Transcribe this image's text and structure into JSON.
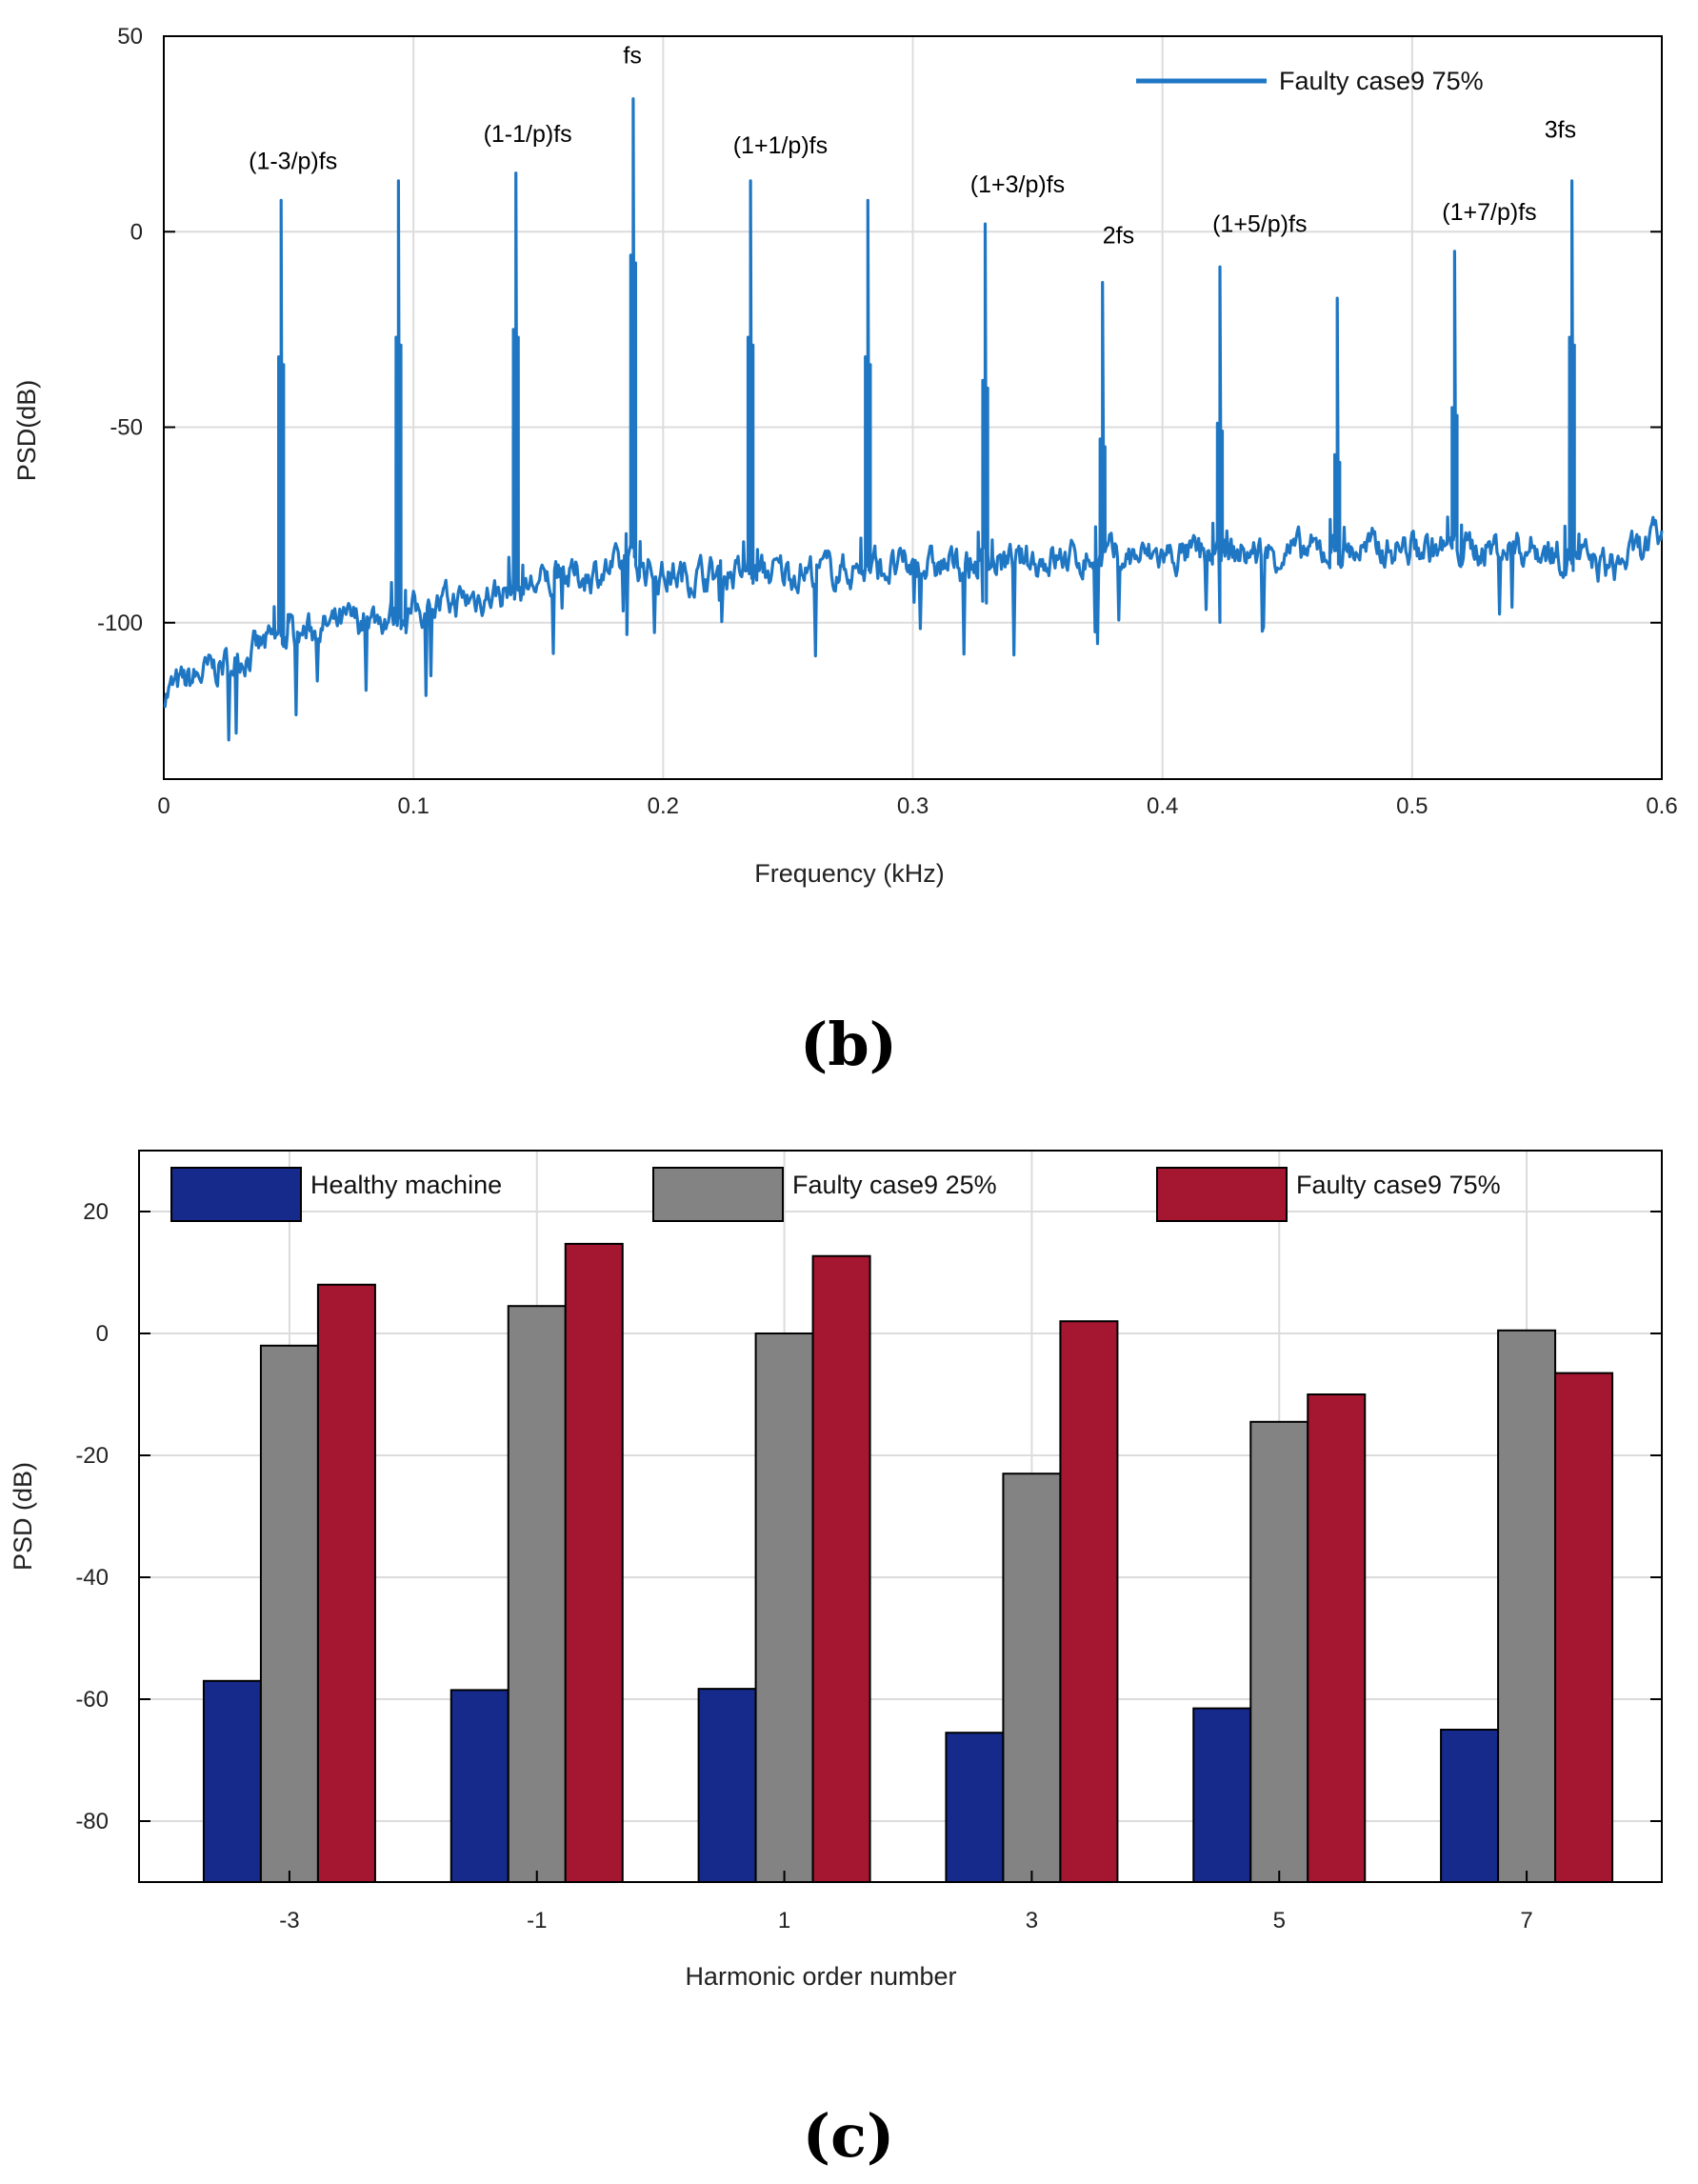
{
  "chart_data": [
    {
      "type": "line",
      "panel_label": "(b)",
      "xlabel": "Frequency (kHz)",
      "ylabel": "PSD(dB)",
      "xlim": [
        0,
        0.6
      ],
      "ylim": [
        -140,
        50
      ],
      "xticks": [
        0,
        0.1,
        0.2,
        0.3,
        0.4,
        0.5,
        0.6
      ],
      "xtick_labels": [
        "0",
        "0.1",
        "0.2",
        "0.3",
        "0.4",
        "0.5",
        "0.6"
      ],
      "yticks": [
        50,
        0,
        -50,
        -100
      ],
      "ytick_labels": [
        "50",
        "0",
        "-50",
        "-100"
      ],
      "grid": true,
      "legend": "top-right",
      "series": [
        {
          "name": "Faulty case9 75%",
          "color": "#1f77c4",
          "baseline": [
            [
              0.0,
              -118
            ],
            [
              0.05,
              -103
            ],
            [
              0.1,
              -97
            ],
            [
              0.15,
              -90
            ],
            [
              0.19,
              -85
            ],
            [
              0.2,
              -88
            ],
            [
              0.25,
              -87
            ],
            [
              0.3,
              -86
            ],
            [
              0.35,
              -84
            ],
            [
              0.4,
              -83
            ],
            [
              0.45,
              -82
            ],
            [
              0.5,
              -81
            ],
            [
              0.55,
              -81
            ],
            [
              0.58,
              -86
            ],
            [
              0.6,
              -78
            ]
          ],
          "peaks": [
            {
              "x": 0.047,
              "y": 8
            },
            {
              "x": 0.094,
              "y": 13
            },
            {
              "x": 0.141,
              "y": 15
            },
            {
              "x": 0.188,
              "y": 34
            },
            {
              "x": 0.235,
              "y": 13
            },
            {
              "x": 0.282,
              "y": 8
            },
            {
              "x": 0.329,
              "y": 2
            },
            {
              "x": 0.376,
              "y": -13
            },
            {
              "x": 0.423,
              "y": -9
            },
            {
              "x": 0.47,
              "y": -17
            },
            {
              "x": 0.517,
              "y": -5
            },
            {
              "x": 0.564,
              "y": 13
            }
          ]
        }
      ],
      "annotations": [
        {
          "text": "(1-3/p)fs",
          "x": 0.034,
          "y": 16
        },
        {
          "text": "(1-1/p)fs",
          "x": 0.128,
          "y": 23
        },
        {
          "text": "fs",
          "x": 0.184,
          "y": 43
        },
        {
          "text": "(1+1/p)fs",
          "x": 0.228,
          "y": 20
        },
        {
          "text": "(1+3/p)fs",
          "x": 0.323,
          "y": 10
        },
        {
          "text": "2fs",
          "x": 0.376,
          "y": -3
        },
        {
          "text": "(1+5/p)fs",
          "x": 0.42,
          "y": 0
        },
        {
          "text": "(1+7/p)fs",
          "x": 0.512,
          "y": 3
        },
        {
          "text": "3fs",
          "x": 0.553,
          "y": 24
        }
      ]
    },
    {
      "type": "bar",
      "panel_label": "(c)",
      "xlabel": "Harmonic order number",
      "ylabel": "PSD (dB)",
      "categories": [
        "-3",
        "-1",
        "1",
        "3",
        "5",
        "7"
      ],
      "ylim": [
        -90,
        30
      ],
      "yticks": [
        20,
        0,
        -20,
        -40,
        -60,
        -80
      ],
      "ytick_labels": [
        "20",
        "0",
        "-20",
        "-40",
        "-60",
        "-80"
      ],
      "grid": true,
      "legend": "top",
      "series": [
        {
          "name": "Healthy machine",
          "color": "#152a8a",
          "values": [
            -57,
            -58.5,
            -58.3,
            -65.5,
            -61.5,
            -65
          ]
        },
        {
          "name": "Faulty case9 25%",
          "color": "#838383",
          "values": [
            -2,
            4.5,
            0,
            -23,
            -14.5,
            0.5
          ]
        },
        {
          "name": "Faulty case9 75%",
          "color": "#a51631",
          "values": [
            8,
            14.7,
            12.7,
            2,
            -10,
            -6.5
          ]
        }
      ]
    }
  ]
}
